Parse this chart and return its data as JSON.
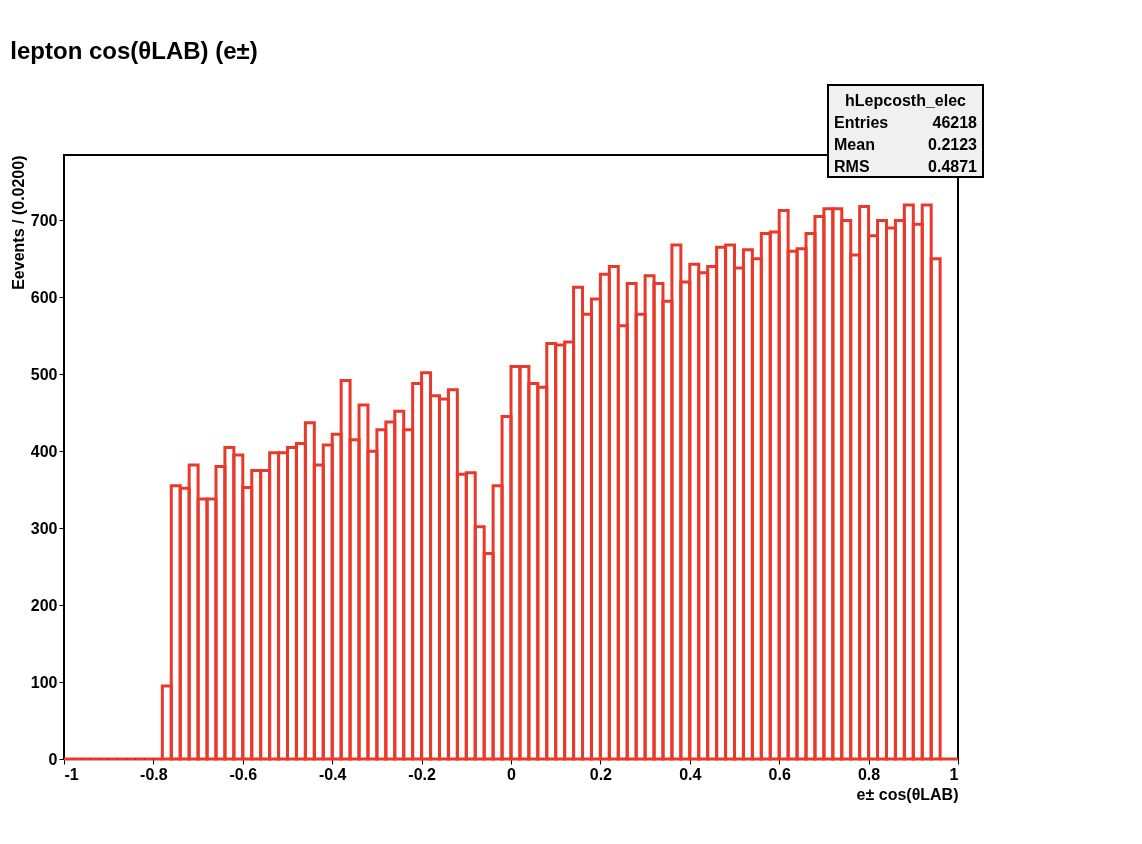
{
  "chart_data": {
    "type": "histogram",
    "title": "lepton cos(θLAB) (e±)",
    "xlabel": "e± cos(θLAB)",
    "ylabel": "Eevents / (0.0200)",
    "bins": [
      -1.0,
      -0.98,
      -0.96,
      -0.94,
      -0.92,
      -0.9,
      -0.88,
      -0.86,
      -0.84,
      -0.82,
      -0.8,
      -0.78,
      -0.76,
      -0.74,
      -0.72,
      -0.7,
      -0.68,
      -0.66,
      -0.64,
      -0.62,
      -0.6,
      -0.58,
      -0.56,
      -0.54,
      -0.52,
      -0.5,
      -0.48,
      -0.46,
      -0.44,
      -0.42,
      -0.4,
      -0.38,
      -0.36,
      -0.34,
      -0.32,
      -0.3,
      -0.28,
      -0.26,
      -0.24,
      -0.22,
      -0.2,
      -0.18,
      -0.16,
      -0.14,
      -0.12,
      -0.1,
      -0.08,
      -0.06,
      -0.04,
      -0.02,
      0.0,
      0.02,
      0.04,
      0.06,
      0.08,
      0.1,
      0.12,
      0.14,
      0.16,
      0.18,
      0.2,
      0.22,
      0.24,
      0.26,
      0.28,
      0.3,
      0.32,
      0.34,
      0.36,
      0.38,
      0.4,
      0.42,
      0.44,
      0.46,
      0.48,
      0.5,
      0.52,
      0.54,
      0.56,
      0.58,
      0.6,
      0.62,
      0.64,
      0.66,
      0.68,
      0.7,
      0.72,
      0.74,
      0.76,
      0.78,
      0.8,
      0.82,
      0.84,
      0.86,
      0.88,
      0.9,
      0.92,
      0.94,
      0.96,
      0.98,
      1.0
    ],
    "values": [
      0,
      0,
      0,
      0,
      0,
      0,
      0,
      0,
      0,
      0,
      0,
      95,
      355,
      352,
      382,
      338,
      338,
      380,
      405,
      395,
      353,
      375,
      375,
      398,
      398,
      405,
      410,
      437,
      382,
      408,
      422,
      492,
      415,
      460,
      400,
      428,
      438,
      452,
      428,
      488,
      502,
      472,
      468,
      480,
      370,
      372,
      302,
      267,
      355,
      445,
      510,
      510,
      488,
      483,
      540,
      538,
      542,
      613,
      578,
      598,
      630,
      640,
      563,
      618,
      578,
      628,
      618,
      595,
      668,
      620,
      643,
      632,
      640,
      665,
      668,
      638,
      662,
      650,
      683,
      685,
      713,
      660,
      663,
      683,
      705,
      715,
      715,
      700,
      655,
      718,
      680,
      700,
      690,
      700,
      720,
      695,
      720,
      650,
      0,
      0
    ],
    "color": "#e8392a",
    "xlim": [
      -1,
      1
    ],
    "xticks": [
      -1,
      -0.8,
      -0.6,
      -0.4,
      -0.2,
      0,
      0.2,
      0.4,
      0.6,
      0.8,
      1
    ],
    "ylim": [
      0,
      785
    ],
    "yticks": [
      0,
      100,
      200,
      300,
      400,
      500,
      600,
      700
    ],
    "grid": false,
    "annotations": [
      "hLepcosth_elec",
      "Entries 46218",
      "Mean 0.2123",
      "RMS 0.4871"
    ]
  }
}
